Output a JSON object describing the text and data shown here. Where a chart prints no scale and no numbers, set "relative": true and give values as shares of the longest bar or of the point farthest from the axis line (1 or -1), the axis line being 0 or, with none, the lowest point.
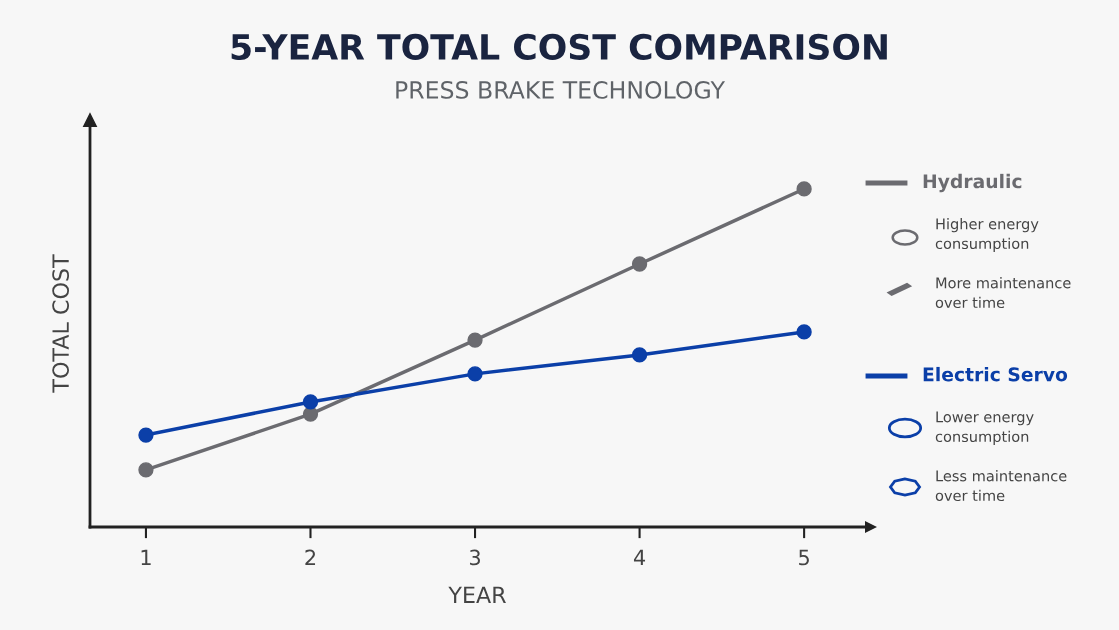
{
  "chart_data": {
    "type": "line",
    "title": "5-YEAR TOTAL COST COMPARISON",
    "subtitle": "PRESS BRAKE TECHNOLOGY",
    "xlabel": "YEAR",
    "ylabel": "TOTAL COST",
    "categories": [
      "1",
      "2",
      "3",
      "4",
      "5"
    ],
    "relative": true,
    "series": [
      {
        "name": "Hydraulic",
        "color": "#6b6b70",
        "values": [
          0.169,
          0.334,
          0.553,
          0.778,
          1.0
        ]
      },
      {
        "name": "Electric Servo",
        "color": "#0b3fa8",
        "values": [
          0.272,
          0.37,
          0.453,
          0.509,
          0.577
        ]
      }
    ],
    "annotations": [
      "Higher energy\nconsumption",
      "More maintenance\nover time",
      "Lower energy\nconsumption",
      "Less maintenance\nover time"
    ],
    "legend": "right",
    "marker": "circle",
    "line_style": "solid",
    "grid": false
  }
}
